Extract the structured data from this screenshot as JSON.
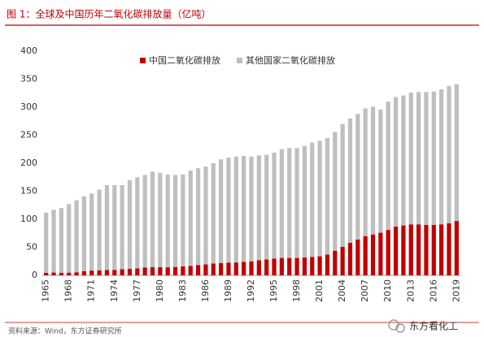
{
  "title": "图 1：全球及中国历年二氧化碳排放量（亿吨）",
  "source": "资料来源：Wind，东方证券研究所",
  "watermark": "东方看化工",
  "chart_data": {
    "type": "stacked_bar",
    "categories": [
      "1965",
      null,
      null,
      "1968",
      null,
      null,
      "1971",
      null,
      null,
      "1974",
      null,
      null,
      "1977",
      null,
      null,
      "1980",
      null,
      null,
      "1983",
      null,
      null,
      "1986",
      null,
      null,
      "1989",
      null,
      null,
      "1992",
      null,
      null,
      "1995",
      null,
      null,
      "1998",
      null,
      null,
      "2001",
      null,
      null,
      "2004",
      null,
      null,
      "2007",
      null,
      null,
      "2010",
      null,
      null,
      "2013",
      null,
      null,
      "2016",
      null,
      null,
      "2019"
    ],
    "series": [
      {
        "name": "中国二氧化碳排放",
        "color": "#c00000",
        "values": [
          4.5,
          5,
          4.5,
          4.8,
          5.5,
          7.5,
          8.5,
          9,
          9.5,
          9.7,
          11,
          11.5,
          12.5,
          14,
          14.5,
          14.5,
          14.3,
          15,
          16,
          17,
          18.5,
          19.5,
          21,
          22,
          22.5,
          23,
          24,
          25,
          27,
          28.5,
          30,
          31,
          31,
          31,
          32,
          33,
          34,
          37,
          44,
          51,
          58,
          64,
          70,
          73,
          76,
          81,
          87,
          89,
          91,
          91,
          90,
          90,
          91,
          93,
          97
        ]
      },
      {
        "name": "其他国家二氧化碳排放",
        "color": "#bfbfbf",
        "values": [
          107.5,
          112,
          115.5,
          122.2,
          128.5,
          133.5,
          137.5,
          144,
          151.5,
          151.3,
          150,
          158.5,
          162.5,
          165,
          170.5,
          168.5,
          165.7,
          164,
          164,
          170,
          172.5,
          174.5,
          179,
          185,
          187.5,
          189,
          189,
          187,
          187,
          186.5,
          189,
          194,
          196,
          196,
          199,
          204,
          206,
          208,
          212,
          219,
          222,
          224,
          228,
          228,
          220,
          229,
          231,
          232,
          235,
          236,
          237,
          238,
          241,
          245,
          244
        ]
      }
    ],
    "ylim": [
      0,
      400
    ],
    "yticks": [
      0,
      50,
      100,
      150,
      200,
      250,
      300,
      350,
      400
    ],
    "grid": false
  }
}
